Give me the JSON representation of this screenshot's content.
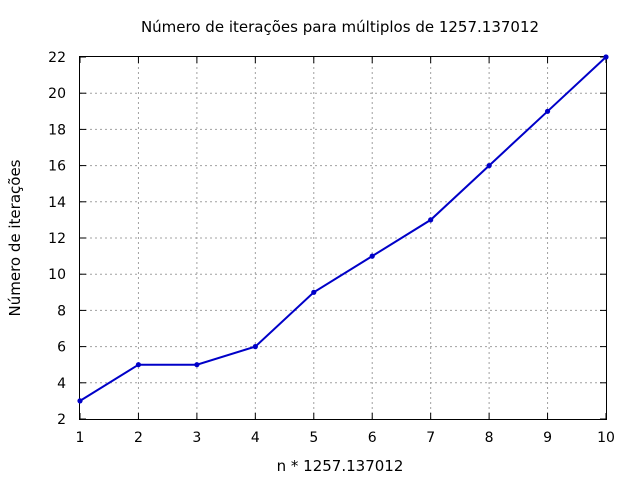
{
  "chart_data": {
    "type": "line",
    "title": "Número de iterações para múltiplos de 1257.137012",
    "xlabel": "n * 1257.137012",
    "ylabel": "Número de iterações",
    "x": [
      1,
      2,
      3,
      4,
      5,
      6,
      7,
      8,
      9,
      10
    ],
    "series": [
      {
        "values": [
          3,
          5,
          5,
          6,
          9,
          11,
          13,
          16,
          19,
          22
        ]
      }
    ],
    "xlim": [
      1,
      10
    ],
    "ylim": [
      2,
      22
    ],
    "xticks": [
      1,
      2,
      3,
      4,
      5,
      6,
      7,
      8,
      9,
      10
    ],
    "yticks": [
      2,
      4,
      6,
      8,
      10,
      12,
      14,
      16,
      18,
      20,
      22
    ],
    "grid": true,
    "line_color": "#0000c8"
  }
}
